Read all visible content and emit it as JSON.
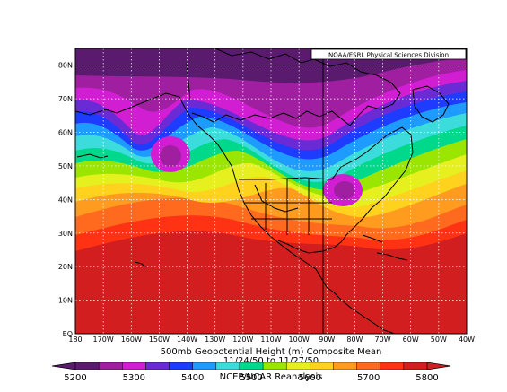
{
  "credit": "NOAA/ESRL Physical Sciences Division",
  "caption": {
    "title": "500mb Geopotential Height (m) Composite Mean",
    "dates": "11/24/50 to 11/27/50",
    "source": "NCEP/NCAR Reanalysis"
  },
  "map": {
    "lon_ticks": [
      "180",
      "170W",
      "160W",
      "150W",
      "140W",
      "130W",
      "120W",
      "110W",
      "100W",
      "90W",
      "80W",
      "70W",
      "60W",
      "50W",
      "40W"
    ],
    "lat_ticks": [
      "EQ",
      "10N",
      "20N",
      "30N",
      "40N",
      "50N",
      "60N",
      "70N",
      "80N"
    ],
    "lon_range": [
      -180,
      -40
    ],
    "lat_range": [
      0,
      85
    ],
    "grid": true
  },
  "colorbar": {
    "labels": [
      "5200",
      "5300",
      "5400",
      "5500",
      "5600",
      "5700",
      "5800"
    ],
    "colors": [
      "#5a1b6e",
      "#a01fa0",
      "#d21ed2",
      "#6a2bd6",
      "#1e3cff",
      "#1e9bff",
      "#3cdcdc",
      "#00d88c",
      "#9be600",
      "#e6f01e",
      "#ffd21e",
      "#ff9b1e",
      "#ff6a1e",
      "#ff3214",
      "#d21e1e"
    ]
  },
  "bands": [
    {
      "color": "#d21e1e"
    },
    {
      "color": "#ff3214"
    },
    {
      "color": "#ff6a1e"
    },
    {
      "color": "#ff9b1e"
    },
    {
      "color": "#ffd21e"
    },
    {
      "color": "#e6f01e"
    },
    {
      "color": "#9be600"
    },
    {
      "color": "#00d88c"
    },
    {
      "color": "#3cdcdc"
    },
    {
      "color": "#1e9bff"
    },
    {
      "color": "#1e3cff"
    },
    {
      "color": "#6a2bd6"
    },
    {
      "color": "#d21ed2"
    },
    {
      "color": "#a01fa0"
    },
    {
      "color": "#5a1b6e"
    }
  ]
}
